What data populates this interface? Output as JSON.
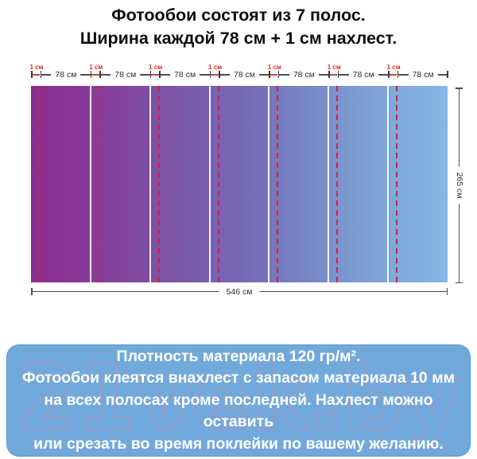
{
  "title": {
    "line1": "Фотообои состоят из 7 полос.",
    "line2": "Ширина каждой 78 см + 1 см нахлест."
  },
  "diagram": {
    "strip_count": 7,
    "overlap_label": "1 см",
    "strip_width_label": "78 см",
    "total_width_label": "546 см",
    "height_label": "265 см",
    "colors": {
      "gradient_left": "#8A2D8F",
      "gradient_middle": "#7568B4",
      "gradient_right": "#84B7E4",
      "overlap_dashed_line": "#D2204A",
      "overlap_text": "#E8242B",
      "measure_line": "#4D4D4D"
    }
  },
  "note": {
    "background": "#72A9DC",
    "text_color": "#FFFFFF",
    "lines": [
      "Плотность материала 120 гр/м².",
      "Фотообои клеятся внахлест с запасом материала 10 мм",
      "на всех полосах кроме последней. Нахлест можно оставить",
      "или срезать во время поклейки по вашему желанию."
    ]
  },
  "watermark": {
    "text": "21vek.by",
    "color": "#E27D9B"
  }
}
